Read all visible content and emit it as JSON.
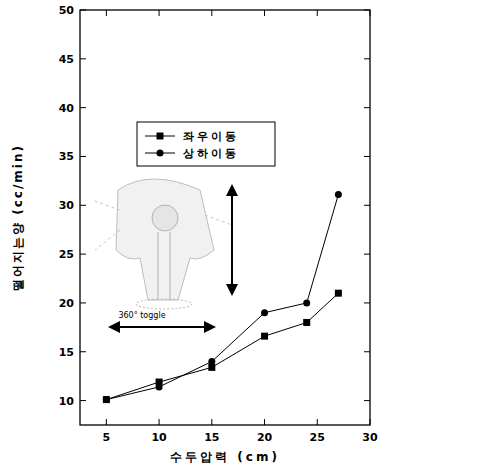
{
  "chart_data": {
    "type": "line",
    "x_label": "수두압력 (cm)",
    "y_label": "떨어지는양 (cc/min)",
    "annotation": "360° toggle",
    "x": [
      5,
      10,
      15,
      20,
      24,
      27
    ],
    "series": [
      {
        "name": "좌우이동",
        "color": "#000000",
        "marker": "square",
        "line_style": "solid",
        "values": [
          10.1,
          11.9,
          13.4,
          16.6,
          18.0,
          21.0
        ]
      },
      {
        "name": "상하이동",
        "color": "#000000",
        "marker": "circle",
        "line_style": "solid",
        "values": [
          10.1,
          11.4,
          14.0,
          19.0,
          20.0,
          31.1
        ]
      }
    ],
    "xlim": [
      2.5,
      30
    ],
    "xticks": [
      5,
      10,
      15,
      20,
      25,
      30
    ],
    "ylim": [
      7.5,
      50
    ],
    "yticks": [
      10,
      15,
      20,
      25,
      30,
      35,
      40,
      45,
      50
    ],
    "grid": false,
    "legend": "upper left"
  }
}
